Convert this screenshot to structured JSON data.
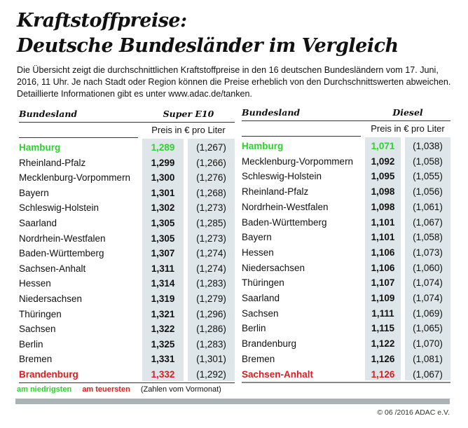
{
  "title_line1": "Kraftstoffpreise:",
  "title_line2": "Deutsche Bundesländer im Vergleich",
  "intro": "Die Übersicht zeigt die durchschnittlichen Kraftstoffpreise in den 16 deutschen Bundesländern vom 17. Juni, 2016, 11 Uhr. Je nach Stadt oder Region können die Preise erheblich von den Durchschnittswerten abweichen. Detaillierte Informationen gibt es unter www.adac.de/tanken.",
  "colors": {
    "lowest": "#2fd12f",
    "highest": "#d81e1e",
    "column_bg": "#dfe6e9"
  },
  "tables": [
    {
      "col_header": "Bundesland",
      "fuel": "Super E10",
      "unit": "Preis in € pro Liter",
      "rows": [
        {
          "name": "Hamburg",
          "price": "1,289",
          "prev": "(1,267)",
          "mark": "green"
        },
        {
          "name": "Rheinland-Pfalz",
          "price": "1,299",
          "prev": "(1,266)"
        },
        {
          "name": "Mecklenburg-Vorpommern",
          "price": "1,300",
          "prev": "(1,276)"
        },
        {
          "name": "Bayern",
          "price": "1,301",
          "prev": "(1,268)"
        },
        {
          "name": "Schleswig-Holstein",
          "price": "1,302",
          "prev": "(1,273)"
        },
        {
          "name": "Saarland",
          "price": "1,305",
          "prev": "(1,285)"
        },
        {
          "name": "Nordrhein-Westfalen",
          "price": "1,305",
          "prev": "(1,273)"
        },
        {
          "name": "Baden-Württemberg",
          "price": "1,307",
          "prev": "(1,274)"
        },
        {
          "name": "Sachsen-Anhalt",
          "price": "1,311",
          "prev": "(1,274)"
        },
        {
          "name": "Hessen",
          "price": "1,314",
          "prev": "(1,283)"
        },
        {
          "name": "Niedersachsen",
          "price": "1,319",
          "prev": "(1,279)"
        },
        {
          "name": "Thüringen",
          "price": "1,321",
          "prev": "(1,296)"
        },
        {
          "name": "Sachsen",
          "price": "1,322",
          "prev": "(1,286)"
        },
        {
          "name": "Berlin",
          "price": "1,325",
          "prev": "(1,283)"
        },
        {
          "name": "Bremen",
          "price": "1,331",
          "prev": "(1,301)"
        },
        {
          "name": "Brandenburg",
          "price": "1,332",
          "prev": "(1,292)",
          "mark": "red"
        }
      ]
    },
    {
      "col_header": "Bundesland",
      "fuel": "Diesel",
      "unit": "Preis in € pro Liter",
      "rows": [
        {
          "name": "Hamburg",
          "price": "1,071",
          "prev": "(1,038)",
          "mark": "green"
        },
        {
          "name": "Mecklenburg-Vorpommern",
          "price": "1,092",
          "prev": "(1,058)"
        },
        {
          "name": "Schleswig-Holstein",
          "price": "1,095",
          "prev": "(1,055)"
        },
        {
          "name": "Rheinland-Pfalz",
          "price": "1,098",
          "prev": "(1,056)"
        },
        {
          "name": "Nordrhein-Westfalen",
          "price": "1,098",
          "prev": "(1,061)"
        },
        {
          "name": "Baden-Württemberg",
          "price": "1,101",
          "prev": "(1,067)"
        },
        {
          "name": "Bayern",
          "price": "1,101",
          "prev": "(1,058)"
        },
        {
          "name": "Hessen",
          "price": "1,106",
          "prev": "(1,073)"
        },
        {
          "name": "Niedersachsen",
          "price": "1,106",
          "prev": "(1,060)"
        },
        {
          "name": "Thüringen",
          "price": "1,107",
          "prev": "(1,074)"
        },
        {
          "name": "Saarland",
          "price": "1,109",
          "prev": "(1,074)"
        },
        {
          "name": "Sachsen",
          "price": "1,111",
          "prev": "(1,069)"
        },
        {
          "name": "Berlin",
          "price": "1,115",
          "prev": "(1,065)"
        },
        {
          "name": "Brandenburg",
          "price": "1,122",
          "prev": "(1,070)"
        },
        {
          "name": "Bremen",
          "price": "1,126",
          "prev": "(1,081)"
        },
        {
          "name": "Sachsen-Anhalt",
          "price": "1,126",
          "prev": "(1,067)",
          "mark": "red"
        }
      ]
    }
  ],
  "legend": {
    "lowest": "am niedrigsten",
    "highest": "am teuersten",
    "note": "(Zahlen vom Vormonat)"
  },
  "copyright": "© 06 /2016 ADAC e.V."
}
